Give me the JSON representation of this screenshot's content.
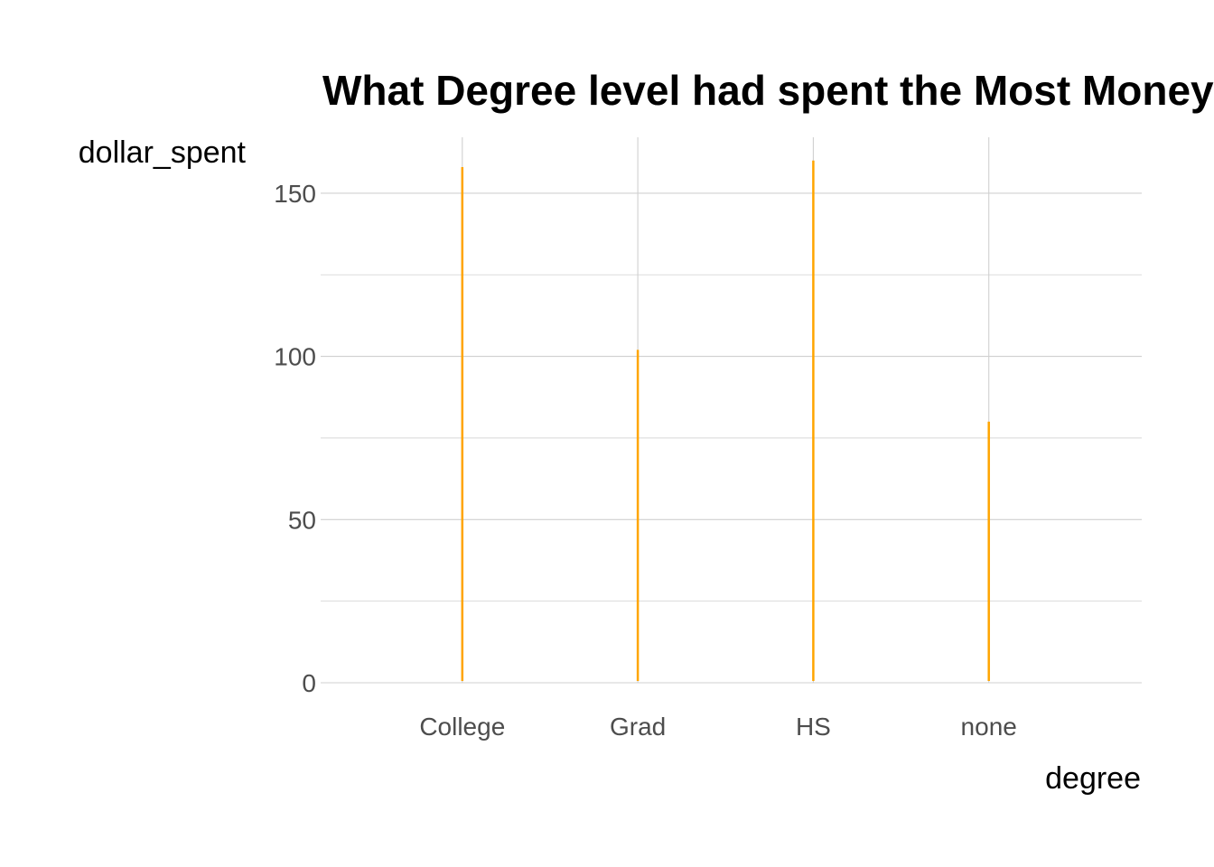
{
  "chart_data": {
    "type": "bar",
    "title": "What Degree level had spent the Most Money",
    "xlabel": "degree",
    "ylabel": "dollar_spent",
    "categories": [
      "College",
      "Grad",
      "HS",
      "none"
    ],
    "values": [
      158,
      102,
      160,
      80
    ],
    "ylim": [
      0,
      165
    ],
    "yticks": [
      0,
      50,
      100,
      150
    ],
    "grid": true,
    "legend": "none",
    "colors": {
      "bar": "#ffa500"
    }
  }
}
